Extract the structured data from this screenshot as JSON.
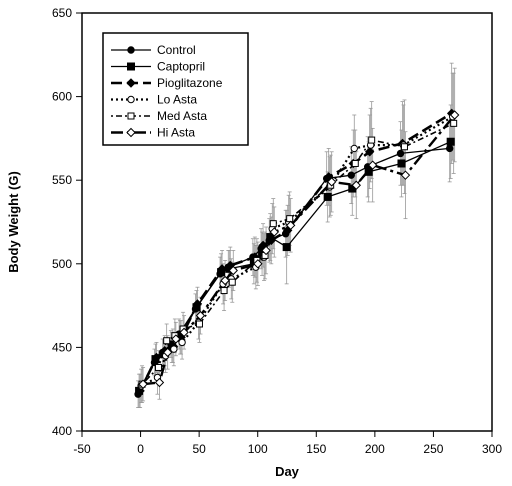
{
  "chart_data": {
    "type": "line",
    "title": "",
    "xlabel": "Day",
    "ylabel": "Body Weight (G)",
    "xlim": [
      -50,
      300
    ],
    "ylim": [
      400,
      650
    ],
    "xticks": [
      -50,
      0,
      50,
      100,
      150,
      200,
      250,
      300
    ],
    "yticks": [
      400,
      450,
      500,
      550,
      600,
      650
    ],
    "grid": false,
    "legend_position": "top-left",
    "series": [
      {
        "name": "Control",
        "marker": "filled-circle",
        "dash": "solid",
        "x": [
          0,
          14,
          21,
          28,
          35,
          49,
          70,
          77,
          98,
          105,
          112,
          126,
          161,
          182,
          196,
          224,
          266
        ],
        "y": [
          422,
          441,
          447,
          452,
          458,
          473,
          494,
          498,
          504,
          509,
          514,
          518,
          551,
          553,
          558,
          566,
          569
        ],
        "err": [
          8,
          8,
          8,
          8,
          9,
          9,
          10,
          10,
          11,
          12,
          13,
          14,
          16,
          17,
          18,
          19,
          20
        ]
      },
      {
        "name": "Captopril",
        "marker": "filled-square",
        "dash": "solid",
        "x": [
          0,
          14,
          21,
          28,
          35,
          49,
          70,
          77,
          98,
          105,
          112,
          126,
          161,
          182,
          196,
          224,
          266
        ],
        "y": [
          424,
          443,
          446,
          450,
          456,
          474,
          495,
          497,
          500,
          506,
          516,
          510,
          540,
          545,
          555,
          560,
          573
        ],
        "err": [
          10,
          9,
          9,
          9,
          10,
          10,
          11,
          11,
          12,
          13,
          14,
          22,
          15,
          16,
          18,
          20,
          22
        ]
      },
      {
        "name": "Pioglitazone",
        "marker": "filled-diamond",
        "dash": "long-dash",
        "x": [
          0,
          14,
          21,
          28,
          35,
          49,
          70,
          77,
          98,
          105,
          112,
          126,
          161,
          182,
          196,
          224,
          266
        ],
        "y": [
          424,
          444,
          448,
          451,
          456,
          476,
          497,
          499,
          504,
          511,
          514,
          520,
          552,
          560,
          567,
          572,
          590
        ],
        "err": [
          10,
          9,
          9,
          10,
          10,
          10,
          11,
          11,
          12,
          13,
          14,
          15,
          17,
          20,
          22,
          25,
          30
        ]
      },
      {
        "name": "Lo Asta",
        "marker": "open-circle",
        "dash": "dotted",
        "x": [
          0,
          14,
          21,
          28,
          35,
          49,
          70,
          77,
          98,
          105,
          112,
          126,
          161,
          182,
          196,
          224,
          266
        ],
        "y": [
          427,
          432,
          445,
          449,
          453,
          465,
          488,
          491,
          498,
          504,
          521,
          525,
          546,
          569,
          571,
          571,
          588
        ],
        "err": [
          10,
          10,
          10,
          10,
          10,
          10,
          12,
          12,
          13,
          14,
          15,
          16,
          18,
          20,
          22,
          24,
          26
        ]
      },
      {
        "name": "Med Asta",
        "marker": "open-square",
        "dash": "dot-dash",
        "x": [
          0,
          14,
          21,
          28,
          35,
          49,
          70,
          77,
          98,
          105,
          112,
          126,
          161,
          182,
          196,
          224,
          266
        ],
        "y": [
          428,
          438,
          454,
          457,
          461,
          464,
          484,
          489,
          502,
          505,
          524,
          527,
          547,
          560,
          574,
          570,
          584
        ],
        "err": [
          11,
          10,
          10,
          10,
          10,
          11,
          12,
          12,
          13,
          14,
          15,
          16,
          18,
          20,
          23,
          28,
          30
        ]
      },
      {
        "name": "Hi Asta",
        "marker": "open-diamond",
        "dash": "long-dash-dot",
        "x": [
          0,
          14,
          21,
          28,
          35,
          49,
          70,
          77,
          98,
          105,
          112,
          126,
          161,
          182,
          196,
          224,
          266
        ],
        "y": [
          428,
          429,
          447,
          455,
          459,
          469,
          490,
          496,
          500,
          508,
          519,
          523,
          549,
          547,
          559,
          553,
          589
        ],
        "err": [
          10,
          10,
          10,
          10,
          10,
          11,
          12,
          12,
          13,
          14,
          15,
          16,
          18,
          20,
          22,
          26,
          28
        ]
      }
    ]
  }
}
